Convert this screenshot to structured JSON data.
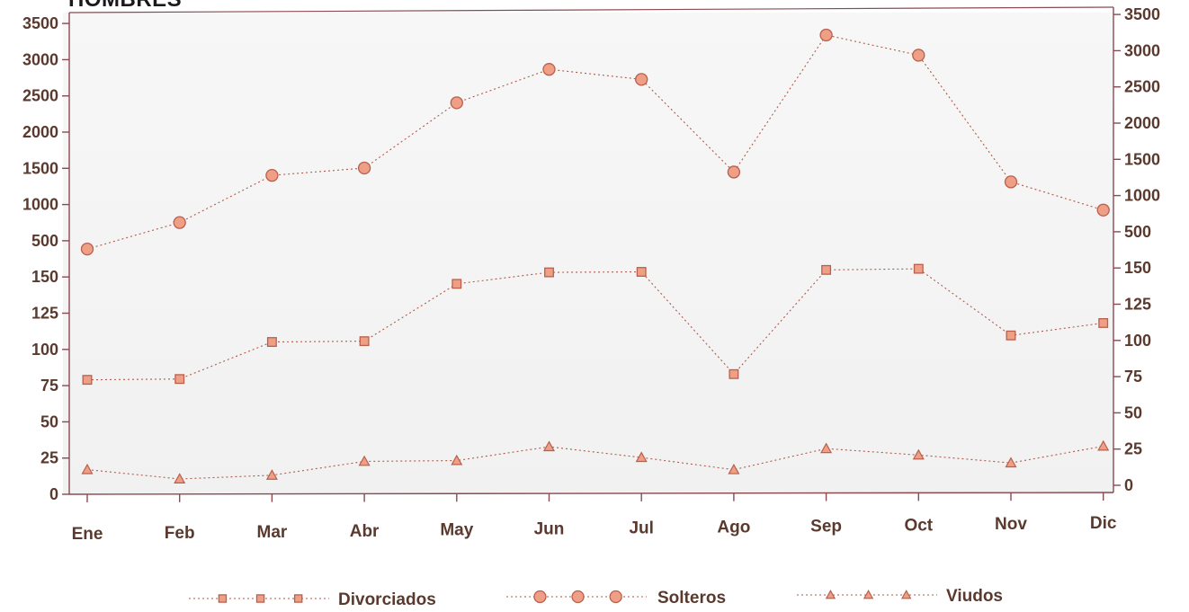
{
  "chart_data": {
    "type": "line",
    "title": "HOMBRES",
    "categories": [
      "Ene",
      "Feb",
      "Mar",
      "Abr",
      "May",
      "Jun",
      "Jul",
      "Ago",
      "Sep",
      "Oct",
      "Nov",
      "Dic"
    ],
    "y_ticks": [
      "0",
      "25",
      "50",
      "75",
      "100",
      "125",
      "150",
      "500",
      "1000",
      "1500",
      "2000",
      "2500",
      "3000",
      "3500"
    ],
    "axis_note": "Broken scale: 0-150 in steps of 25, then 500-3500 in steps of 500",
    "series": [
      {
        "name": "Divorciados",
        "marker": "square",
        "color": "#e99f88",
        "values": [
          79,
          79,
          104,
          104,
          143,
          155,
          152,
          79,
          155,
          158,
          104,
          112
        ]
      },
      {
        "name": "Solteros",
        "marker": "circle",
        "color": "#e99f88",
        "values": [
          420,
          740,
          1380,
          1470,
          2360,
          2810,
          2660,
          1370,
          3250,
          2960,
          1200,
          800
        ]
      },
      {
        "name": "Viudos",
        "marker": "triangle",
        "color": "#e99f88",
        "values": [
          17,
          10,
          12,
          21,
          21,
          30,
          22,
          13,
          27,
          22,
          16,
          27
        ]
      }
    ],
    "legend_position": "bottom",
    "grid": false,
    "colors": {
      "line": "#b05a4a",
      "axis": "#8a4a52",
      "marker_fill": "#ef9f86",
      "marker_stroke": "#b8604c"
    }
  }
}
